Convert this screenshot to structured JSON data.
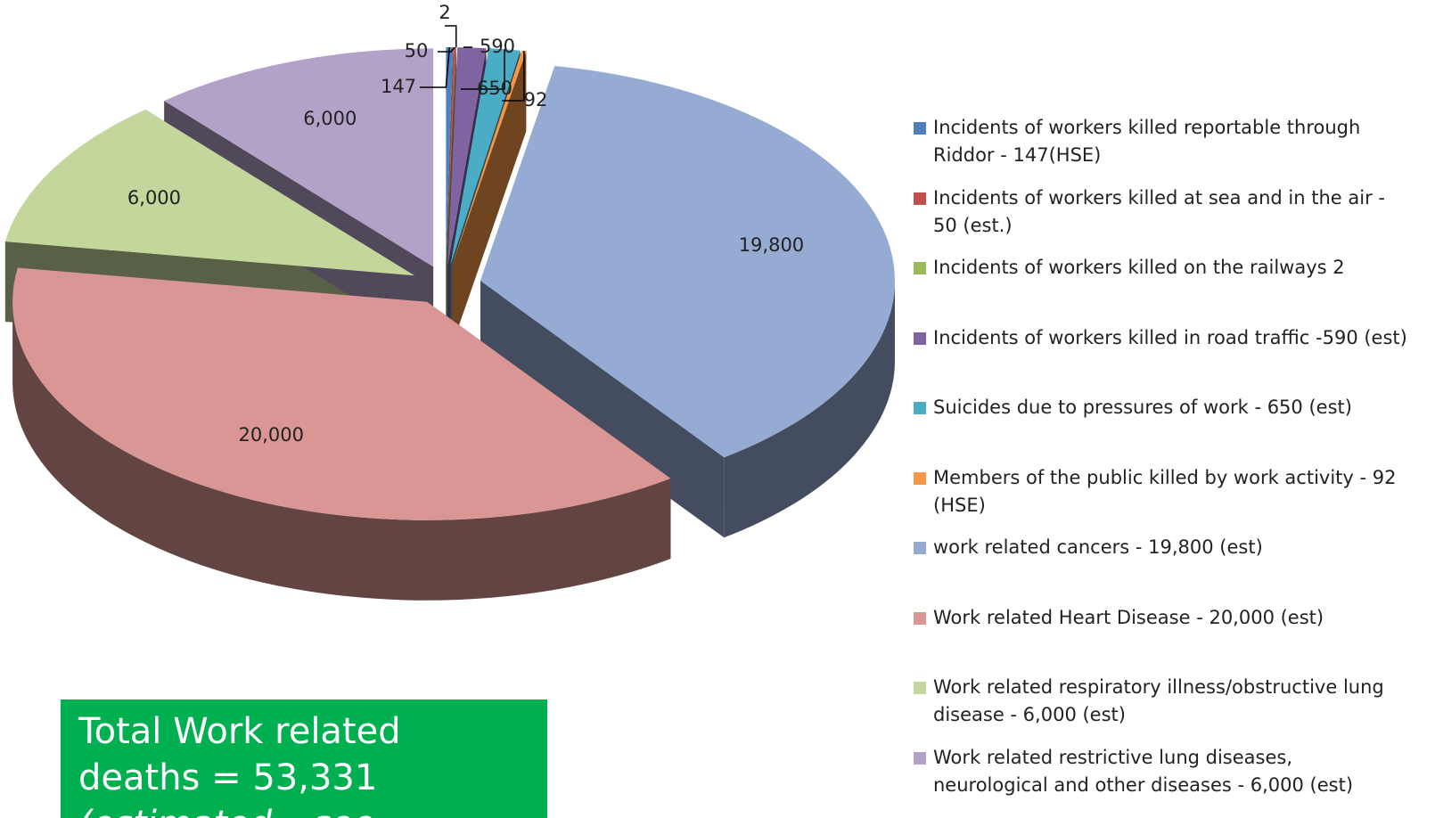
{
  "chart_data": {
    "type": "pie",
    "categories": [
      "Incidents of workers killed reportable through Riddor - 147(HSE)",
      "Incidents of workers killed at sea and in the air - 50 (est.)",
      "Incidents of workers killed on the railways 2",
      "Incidents of workers killed in road traffic  -590 (est)",
      "Suicides due to pressures of work - 650 (est)",
      "Members of the public killed by work activity - 92 (HSE)",
      "work related cancers - 19,800 (est)",
      "Work related Heart Disease - 20,000 (est)",
      "Work related respiratory illness/obstructive lung disease - 6,000 (est)",
      "Work related restrictive lung diseases, neurological and other diseases - 6,000 (est)"
    ],
    "values": [
      147,
      50,
      2,
      590,
      650,
      92,
      19800,
      20000,
      6000,
      6000
    ],
    "value_labels": [
      "147",
      "50",
      "2",
      "590",
      "650",
      "92",
      "19,800",
      "20,000",
      "6,000",
      "6,000"
    ],
    "colors": [
      "#4f81bd",
      "#c0504d",
      "#9bbb59",
      "#8064a2",
      "#4bacc6",
      "#f79646",
      "#95abd3",
      "#d99694",
      "#c3d69b",
      "#b3a2c7"
    ],
    "legend": "right",
    "annotation": "Total Work related deaths = 53,331",
    "annotation_note": "(estimated – see"
  }
}
